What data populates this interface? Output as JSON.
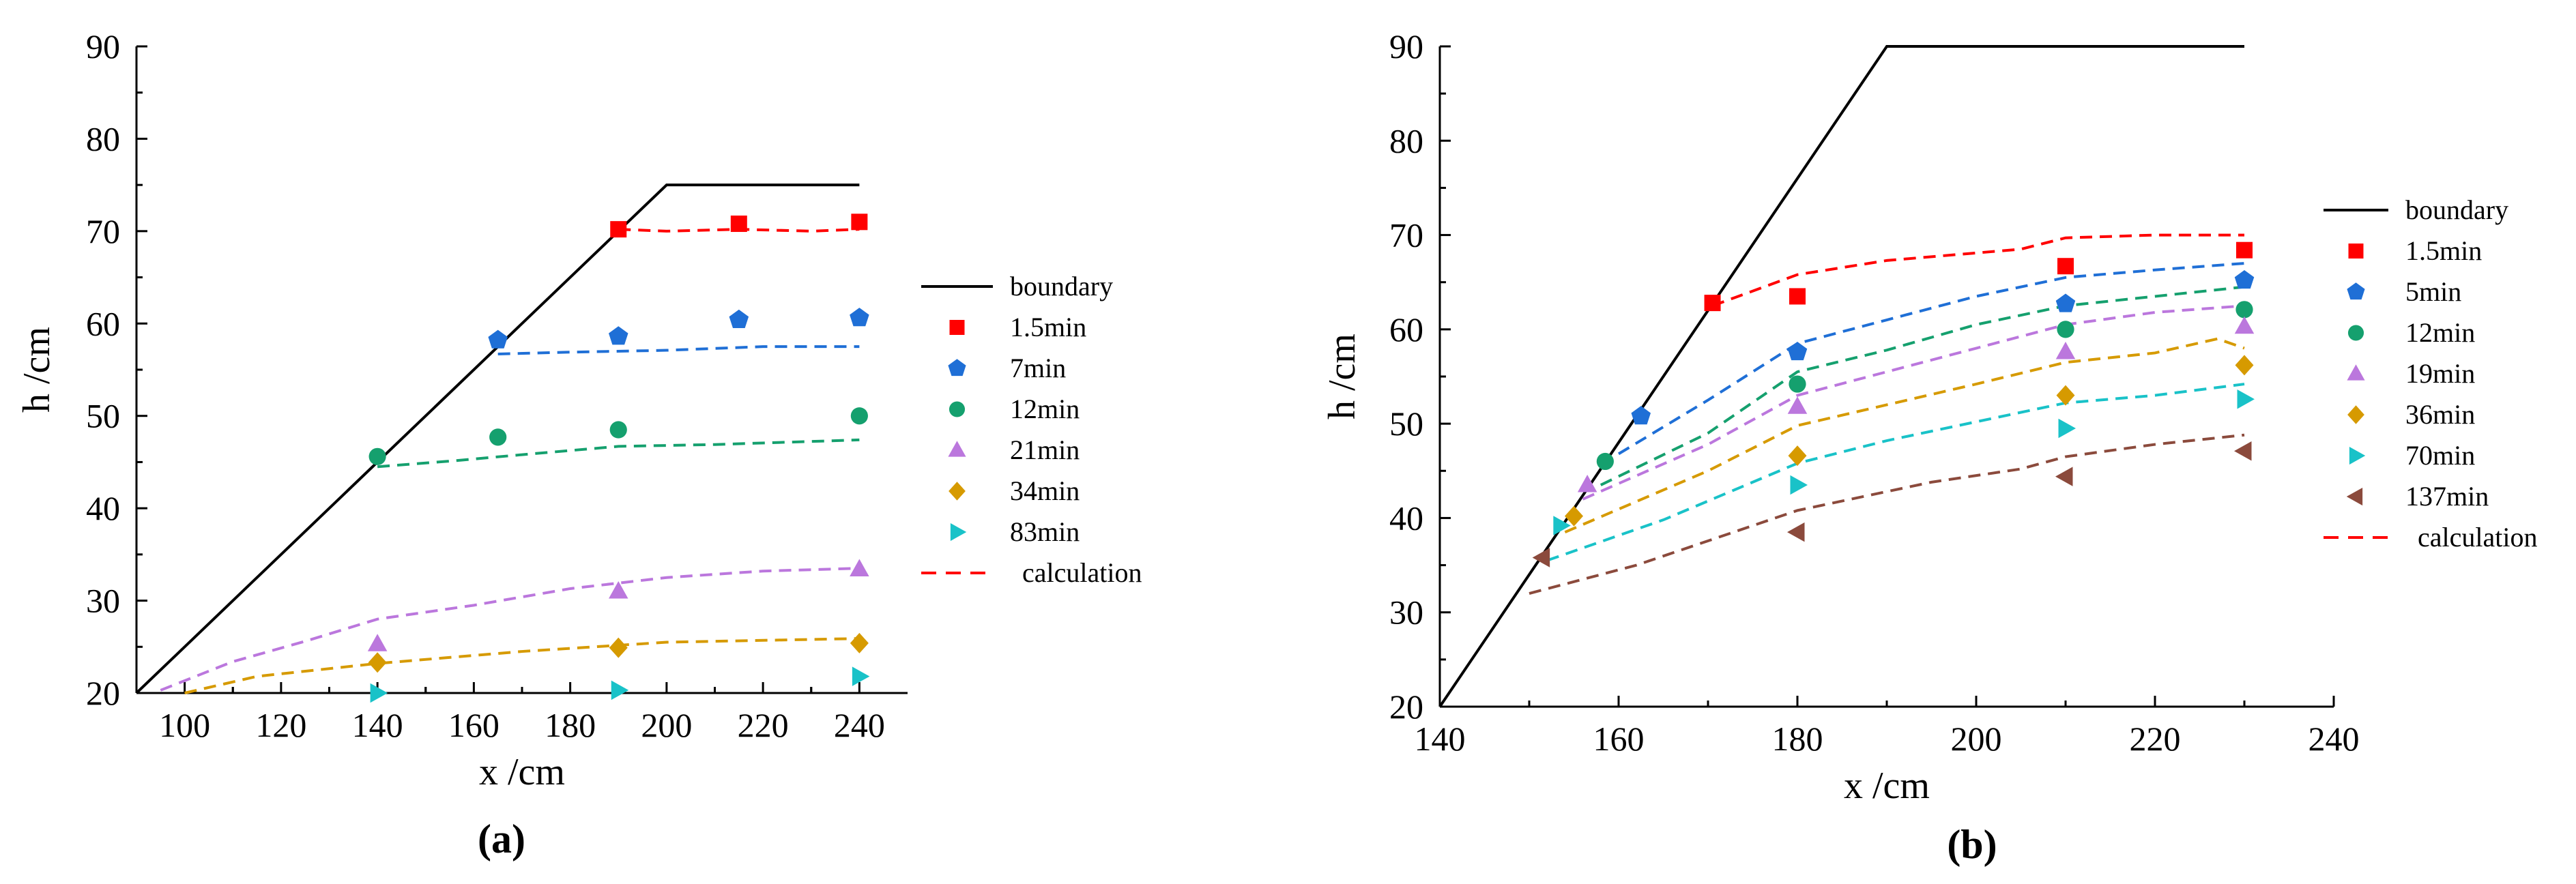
{
  "chart_data": [
    {
      "id": "a",
      "type": "scatter",
      "panel_label": "(a)",
      "xlabel": "x /cm",
      "ylabel": "h /cm",
      "xlim": [
        90,
        250
      ],
      "ylim": [
        20,
        90
      ],
      "xticks": [
        100,
        120,
        140,
        160,
        180,
        200,
        220,
        240
      ],
      "yticks": [
        20,
        30,
        40,
        50,
        60,
        70,
        80,
        90
      ],
      "boundary": {
        "name": "boundary",
        "color": "#000000",
        "points": [
          [
            90,
            20
          ],
          [
            200,
            75
          ],
          [
            240,
            75
          ]
        ]
      },
      "series": [
        {
          "name": "1.5min",
          "marker": "square",
          "color": "#ff0000",
          "points": [
            [
              190,
              70.2
            ],
            [
              215,
              70.8
            ],
            [
              240,
              71.0
            ]
          ],
          "calc": [
            [
              190,
              70.2
            ],
            [
              200,
              70.0
            ],
            [
              215,
              70.2
            ],
            [
              230,
              70.0
            ],
            [
              240,
              70.2
            ]
          ]
        },
        {
          "name": "7min",
          "marker": "pentagon",
          "color": "#1f6fd6",
          "points": [
            [
              165,
              58.2
            ],
            [
              190,
              58.6
            ],
            [
              215,
              60.4
            ],
            [
              240,
              60.6
            ]
          ],
          "calc": [
            [
              165,
              56.7
            ],
            [
              180,
              56.9
            ],
            [
              200,
              57.1
            ],
            [
              220,
              57.5
            ],
            [
              240,
              57.5
            ]
          ]
        },
        {
          "name": "12min",
          "marker": "circle",
          "color": "#15a06e",
          "points": [
            [
              140,
              45.6
            ],
            [
              165,
              47.7
            ],
            [
              190,
              48.5
            ],
            [
              240,
              50.0
            ]
          ],
          "calc": [
            [
              140,
              44.5
            ],
            [
              155,
              45.1
            ],
            [
              170,
              45.8
            ],
            [
              190,
              46.7
            ],
            [
              210,
              46.9
            ],
            [
              240,
              47.4
            ]
          ]
        },
        {
          "name": "21min",
          "marker": "triangle-up",
          "color": "#bb77dd",
          "points": [
            [
              140,
              25.3
            ],
            [
              190,
              31.0
            ],
            [
              240,
              33.4
            ]
          ],
          "calc": [
            [
              95,
              20.3
            ],
            [
              110,
              23.4
            ],
            [
              125,
              25.6
            ],
            [
              140,
              28.0
            ],
            [
              160,
              29.5
            ],
            [
              180,
              31.3
            ],
            [
              200,
              32.5
            ],
            [
              220,
              33.2
            ],
            [
              240,
              33.5
            ]
          ]
        },
        {
          "name": "34min",
          "marker": "diamond",
          "color": "#d69a00",
          "points": [
            [
              140,
              23.3
            ],
            [
              190,
              24.9
            ],
            [
              240,
              25.4
            ]
          ],
          "calc": [
            [
              100,
              20.0
            ],
            [
              115,
              21.8
            ],
            [
              140,
              23.2
            ],
            [
              170,
              24.5
            ],
            [
              200,
              25.5
            ],
            [
              240,
              25.9
            ]
          ]
        },
        {
          "name": "83min",
          "marker": "triangle-right",
          "color": "#19c2c8",
          "points": [
            [
              140,
              20.0
            ],
            [
              190,
              20.3
            ],
            [
              240,
              21.8
            ]
          ],
          "calc": []
        }
      ],
      "calc_legend": {
        "name": "calculation",
        "color": "#ff0000"
      }
    },
    {
      "id": "b",
      "type": "scatter",
      "panel_label": "(b)",
      "xlabel": "x /cm",
      "ylabel": "h /cm",
      "xlim": [
        140,
        240
      ],
      "ylim": [
        20,
        90
      ],
      "xticks": [
        140,
        160,
        180,
        200,
        220,
        240
      ],
      "yticks": [
        20,
        30,
        40,
        50,
        60,
        70,
        80,
        90
      ],
      "boundary": {
        "name": "boundary",
        "color": "#000000",
        "points": [
          [
            140,
            20
          ],
          [
            190,
            90
          ],
          [
            230,
            90
          ]
        ]
      },
      "series": [
        {
          "name": "1.5min",
          "marker": "square",
          "color": "#ff0000",
          "points": [
            [
              170.5,
              62.8
            ],
            [
              180,
              63.5
            ],
            [
              210,
              66.7
            ],
            [
              230,
              68.4
            ]
          ],
          "calc": [
            [
              170.5,
              62.5
            ],
            [
              180,
              65.8
            ],
            [
              190,
              67.3
            ],
            [
              205,
              68.5
            ],
            [
              210,
              69.7
            ],
            [
              220,
              70.0
            ],
            [
              230,
              70.0
            ]
          ]
        },
        {
          "name": "5min",
          "marker": "pentagon",
          "color": "#1f6fd6",
          "points": [
            [
              162.5,
              50.8
            ],
            [
              180,
              57.6
            ],
            [
              210,
              62.7
            ],
            [
              230,
              65.2
            ]
          ],
          "calc": [
            [
              160,
              46.8
            ],
            [
              170,
              52.5
            ],
            [
              180,
              58.5
            ],
            [
              190,
              61.0
            ],
            [
              200,
              63.5
            ],
            [
              210,
              65.5
            ],
            [
              220,
              66.3
            ],
            [
              230,
              67.0
            ]
          ]
        },
        {
          "name": "12min",
          "marker": "circle",
          "color": "#15a06e",
          "points": [
            [
              158.5,
              46.0
            ],
            [
              180,
              54.2
            ],
            [
              210,
              60.0
            ],
            [
              230,
              62.1
            ]
          ],
          "calc": [
            [
              158,
              43.5
            ],
            [
              170,
              49.0
            ],
            [
              180,
              55.5
            ],
            [
              190,
              57.8
            ],
            [
              200,
              60.5
            ],
            [
              210,
              62.5
            ],
            [
              220,
              63.5
            ],
            [
              230,
              64.5
            ]
          ]
        },
        {
          "name": "19min",
          "marker": "triangle-up",
          "color": "#bb77dd",
          "points": [
            [
              156.5,
              43.5
            ],
            [
              180,
              51.8
            ],
            [
              210,
              57.6
            ],
            [
              230,
              60.3
            ]
          ],
          "calc": [
            [
              156,
              42.0
            ],
            [
              170,
              47.8
            ],
            [
              180,
              53.0
            ],
            [
              190,
              55.5
            ],
            [
              200,
              58.0
            ],
            [
              210,
              60.5
            ],
            [
              220,
              61.8
            ],
            [
              230,
              62.5
            ]
          ]
        },
        {
          "name": "36min",
          "marker": "diamond",
          "color": "#d69a00",
          "points": [
            [
              155,
              40.2
            ],
            [
              180,
              46.6
            ],
            [
              210,
              53.0
            ],
            [
              230,
              56.2
            ]
          ],
          "calc": [
            [
              154,
              38.5
            ],
            [
              170,
              45.0
            ],
            [
              180,
              49.8
            ],
            [
              190,
              52.0
            ],
            [
              200,
              54.2
            ],
            [
              210,
              56.5
            ],
            [
              220,
              57.5
            ],
            [
              227,
              59.0
            ],
            [
              230,
              58.0
            ]
          ]
        },
        {
          "name": "70min",
          "marker": "triangle-right",
          "color": "#19c2c8",
          "points": [
            [
              153.5,
              39.2
            ],
            [
              180,
              43.5
            ],
            [
              210,
              49.5
            ],
            [
              230,
              52.6
            ]
          ],
          "calc": [
            [
              152,
              35.5
            ],
            [
              165,
              39.8
            ],
            [
              180,
              45.8
            ],
            [
              190,
              48.2
            ],
            [
              200,
              50.2
            ],
            [
              210,
              52.2
            ],
            [
              220,
              53.0
            ],
            [
              230,
              54.2
            ]
          ]
        },
        {
          "name": "137min",
          "marker": "triangle-left",
          "color": "#8b4a3c",
          "points": [
            [
              151.5,
              35.8
            ],
            [
              180,
              38.5
            ],
            [
              210,
              44.4
            ],
            [
              230,
              47.1
            ]
          ],
          "calc": [
            [
              150,
              32.0
            ],
            [
              162,
              35.0
            ],
            [
              180,
              40.8
            ],
            [
              195,
              43.8
            ],
            [
              205,
              45.2
            ],
            [
              210,
              46.5
            ],
            [
              220,
              47.8
            ],
            [
              230,
              48.8
            ]
          ]
        }
      ],
      "calc_legend": {
        "name": "calculation",
        "color": "#ff0000"
      }
    }
  ]
}
